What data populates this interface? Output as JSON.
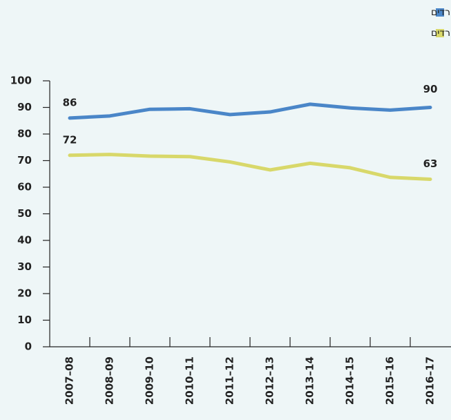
{
  "chart_data": {
    "type": "line",
    "categories": [
      "2007–08",
      "2008–09",
      "2009–10",
      "2010–11",
      "2011–12",
      "2012–13",
      "2013–14",
      "2014–15",
      "2015–16",
      "2016–17"
    ],
    "series": [
      {
        "name": "חרדים",
        "color": "#4a86c8",
        "values": [
          86,
          86.8,
          89.3,
          89.5,
          87.3,
          88.3,
          91.2,
          89.8,
          89,
          90
        ]
      },
      {
        "name": "יהודים לא־חרדים",
        "color": "#d8d86a",
        "values": [
          72,
          72.3,
          71.7,
          71.5,
          69.5,
          66.5,
          69,
          67.3,
          63.7,
          63
        ]
      }
    ],
    "ylim": [
      0,
      100
    ],
    "yticks": [
      0,
      10,
      20,
      30,
      40,
      50,
      60,
      70,
      80,
      90,
      100
    ]
  }
}
